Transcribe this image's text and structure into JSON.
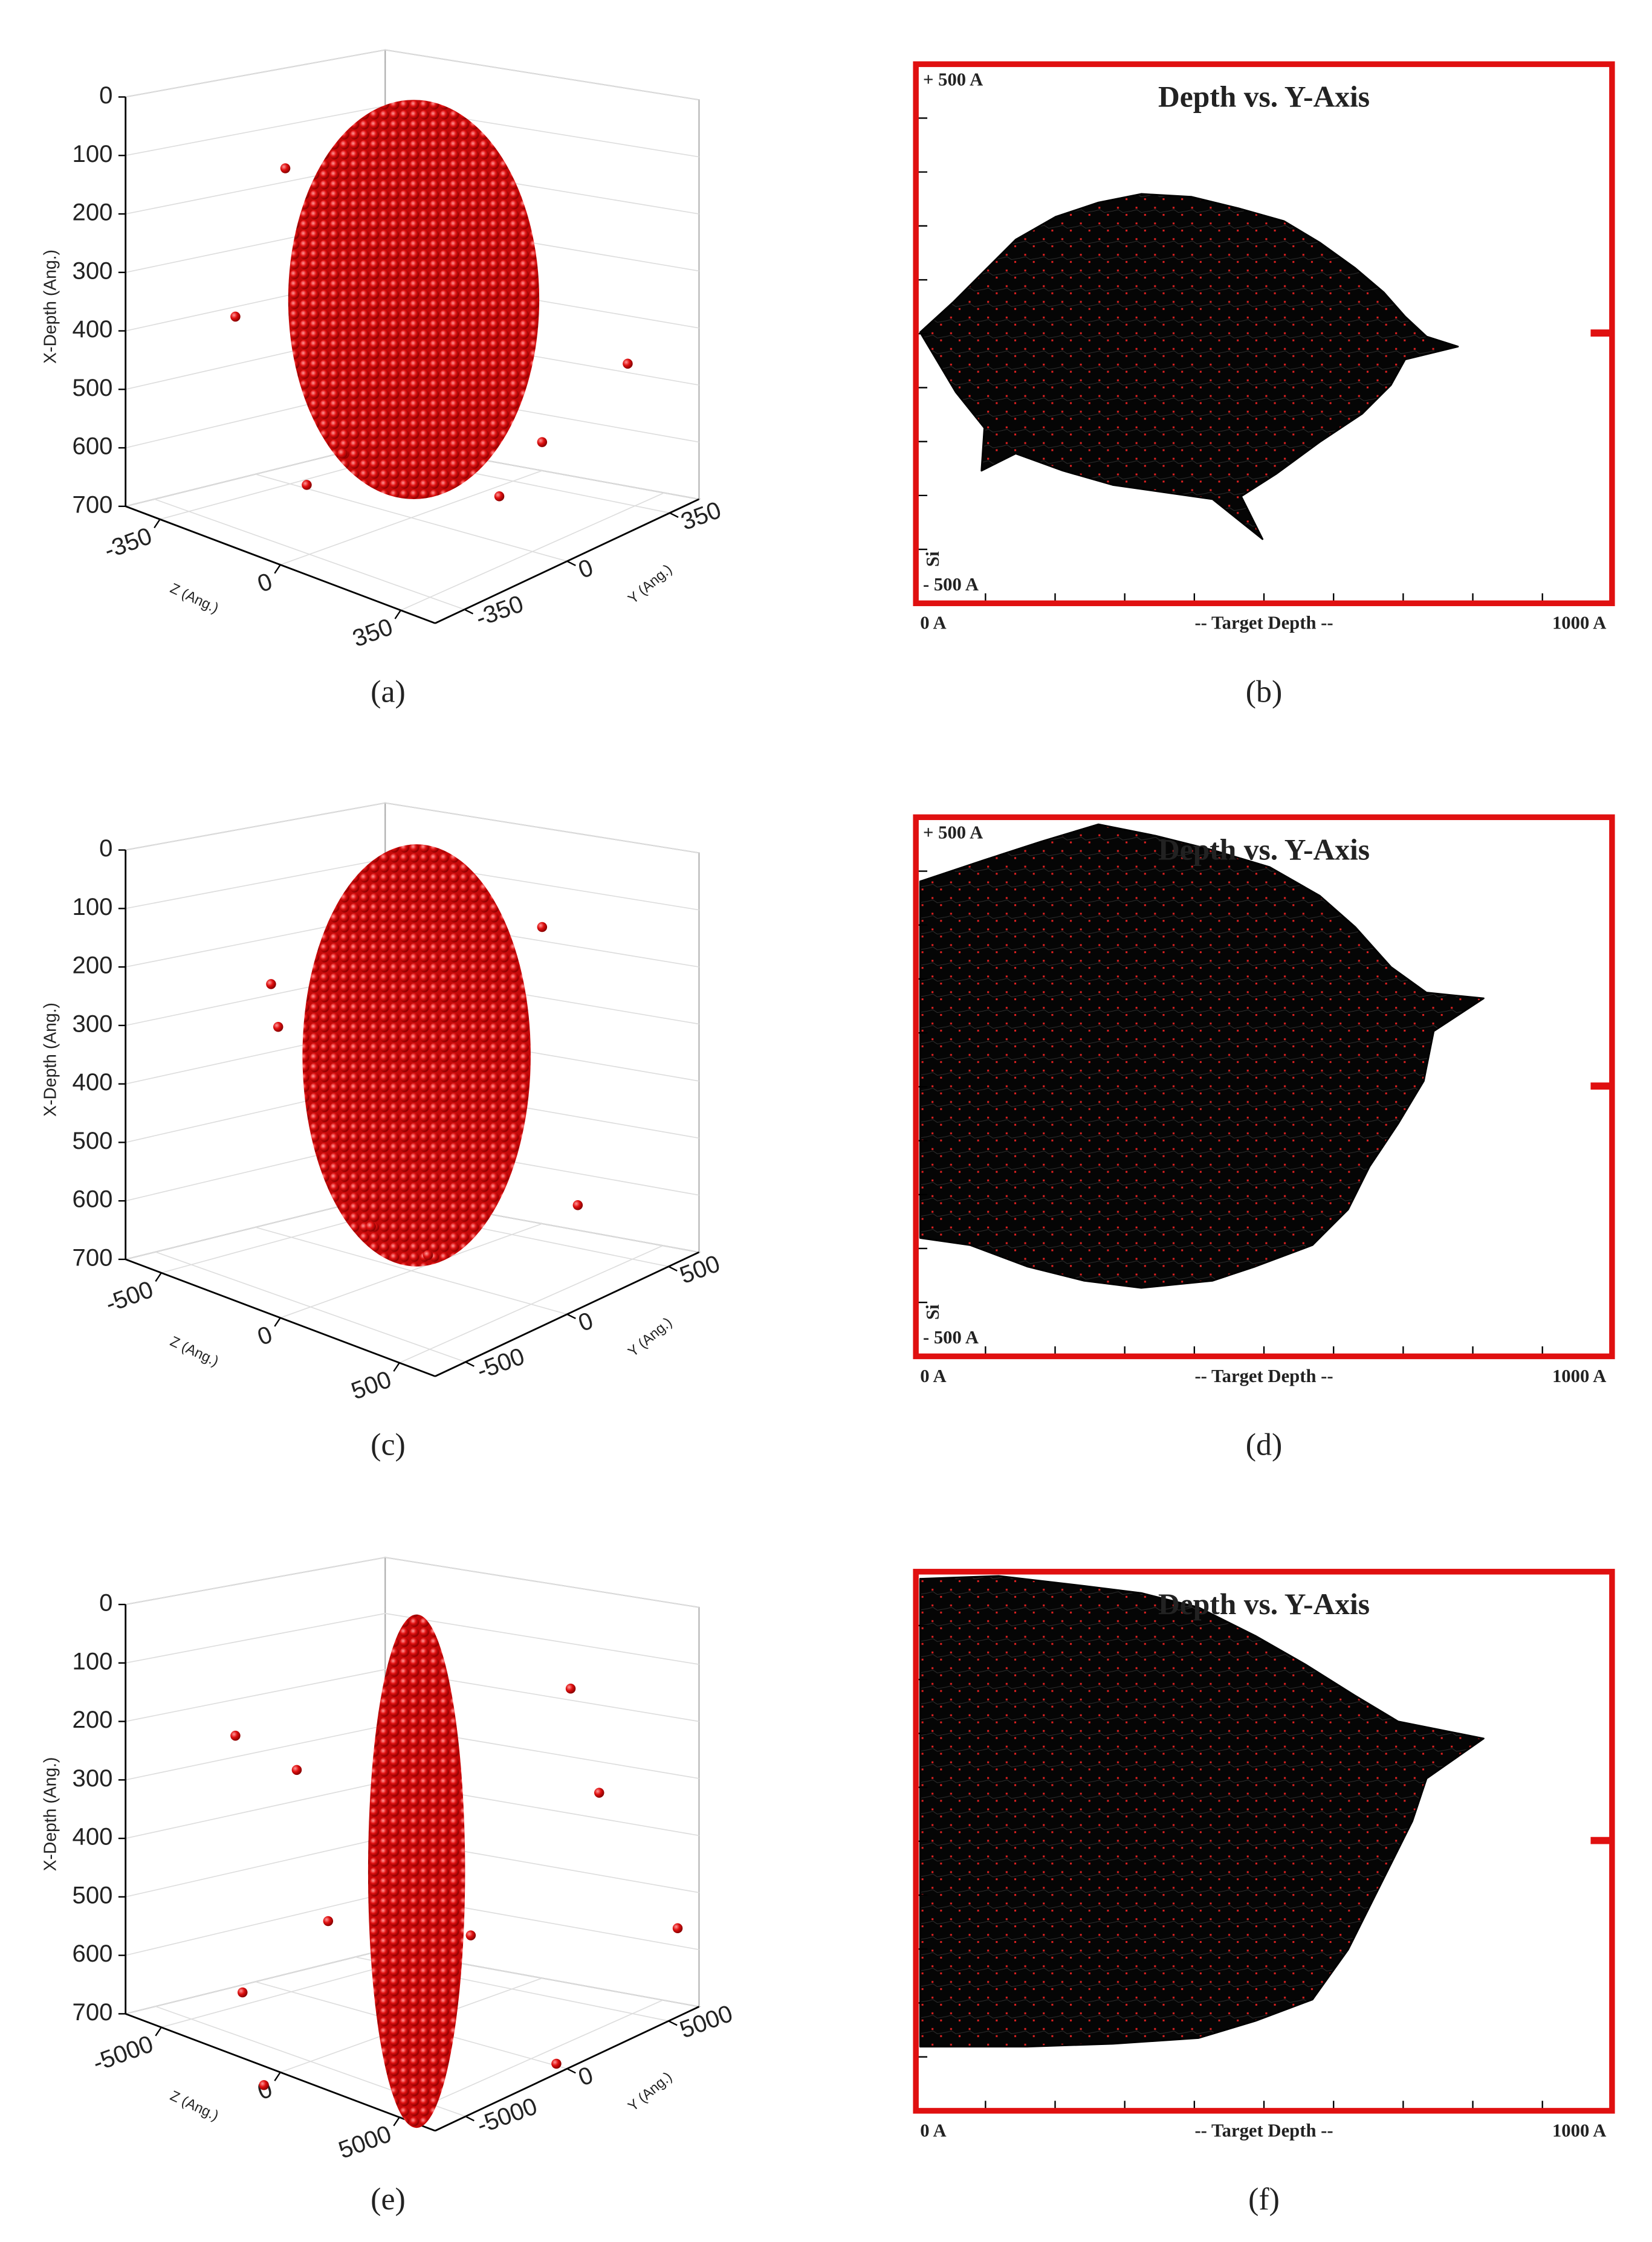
{
  "panels": [
    {
      "type": "scatter3d",
      "label": "(a)",
      "depth_label": "X-Depth (Ang.)",
      "z_label": "Z (Ang.)",
      "y_label": "Y (Ang.)",
      "xlim": [
        0,
        700
      ],
      "xticks": [
        0,
        100,
        200,
        300,
        400,
        500,
        600,
        700
      ],
      "zlim": [
        -450,
        450
      ],
      "zticks": [
        -350,
        0,
        350
      ],
      "ylim": [
        -450,
        450
      ],
      "yticks": [
        -350,
        0,
        350
      ]
    },
    {
      "type": "trajectory",
      "label": "(b)",
      "title": "Depth vs. Y-Axis",
      "top_label": "+ 500 A",
      "bottom_label": "- 500 A",
      "x_start": "0 A",
      "x_mid": "-- Target Depth --",
      "x_end": "1000 A",
      "side_label": "Si"
    },
    {
      "type": "scatter3d",
      "label": "(c)",
      "depth_label": "X-Depth (Ang.)",
      "z_label": "Z (Ang.)",
      "y_label": "Y (Ang.)",
      "xlim": [
        0,
        700
      ],
      "xticks": [
        0,
        100,
        200,
        300,
        400,
        500,
        600,
        700
      ],
      "zlim": [
        -650,
        650
      ],
      "zticks": [
        -500,
        0,
        500
      ],
      "ylim": [
        -650,
        650
      ],
      "yticks": [
        -500,
        0,
        500
      ]
    },
    {
      "type": "trajectory",
      "label": "(d)",
      "title": "Depth vs. Y-Axis",
      "top_label": "+ 500 A",
      "bottom_label": "- 500 A",
      "x_start": "0 A",
      "x_mid": "-- Target Depth --",
      "x_end": "1000 A",
      "side_label": "Si"
    },
    {
      "type": "scatter3d",
      "label": "(e)",
      "depth_label": "X-Depth (Ang.)",
      "z_label": "Z (Ang.)",
      "y_label": "Y (Ang.)",
      "xlim": [
        0,
        700
      ],
      "xticks": [
        0,
        100,
        200,
        300,
        400,
        500,
        600,
        700
      ],
      "zlim": [
        -6500,
        6500
      ],
      "zticks": [
        -5000,
        0,
        5000
      ],
      "ylim": [
        -6500,
        6500
      ],
      "yticks": [
        -5000,
        0,
        5000
      ]
    },
    {
      "type": "trajectory",
      "label": "(f)",
      "title": "Depth vs. Y-Axis",
      "x_start": "0 A",
      "x_mid": "-- Target Depth --",
      "x_end": "1000 A"
    }
  ]
}
